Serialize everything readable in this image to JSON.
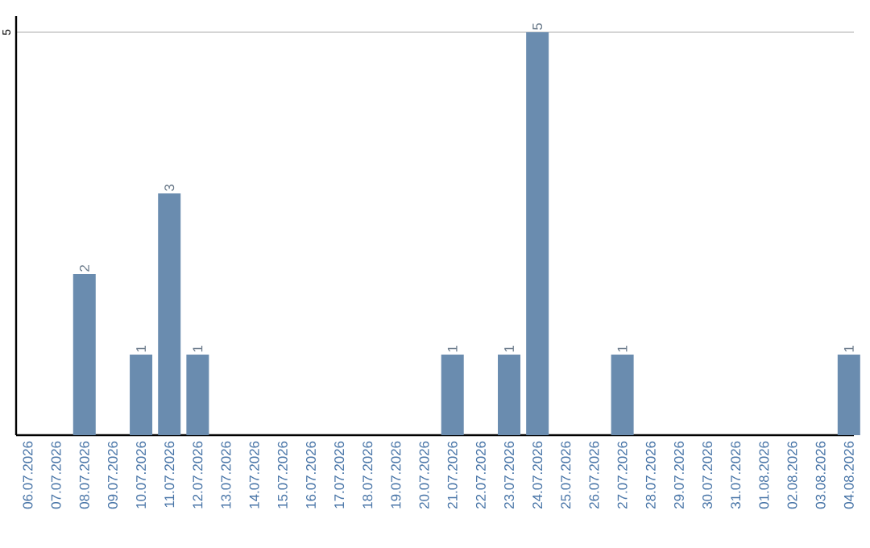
{
  "chart_data": {
    "type": "bar",
    "categories": [
      "06.07.2026",
      "07.07.2026",
      "08.07.2026",
      "09.07.2026",
      "10.07.2026",
      "11.07.2026",
      "12.07.2026",
      "13.07.2026",
      "14.07.2026",
      "15.07.2026",
      "16.07.2026",
      "17.07.2026",
      "18.07.2026",
      "19.07.2026",
      "20.07.2026",
      "21.07.2026",
      "22.07.2026",
      "23.07.2026",
      "24.07.2026",
      "25.07.2026",
      "26.07.2026",
      "27.07.2026",
      "28.07.2026",
      "29.07.2026",
      "30.07.2026",
      "31.07.2026",
      "01.08.2026",
      "02.08.2026",
      "03.08.2026",
      "04.08.2026"
    ],
    "values": [
      null,
      null,
      2,
      null,
      1,
      3,
      1,
      null,
      null,
      null,
      null,
      null,
      null,
      null,
      null,
      1,
      null,
      1,
      5,
      null,
      null,
      1,
      null,
      null,
      null,
      null,
      null,
      null,
      null,
      1
    ],
    "color": "#6a8caf",
    "ylim": [
      0,
      5.2
    ],
    "yticks": [
      5
    ],
    "grid": "y",
    "data_labels": true
  }
}
